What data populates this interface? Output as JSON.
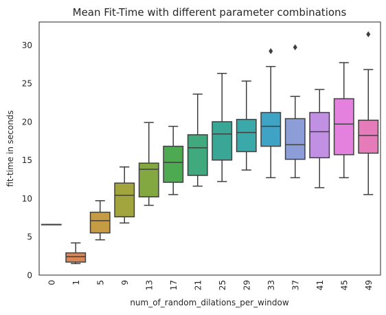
{
  "chart_data": {
    "type": "box",
    "title": "Mean Fit-Time with different parameter combinations",
    "xlabel": "num_of_random_dilations_per_window",
    "ylabel": "fit-time in seconds",
    "ylim": [
      0,
      33
    ],
    "yticks": [
      0,
      5,
      10,
      15,
      20,
      25,
      30
    ],
    "grid": false,
    "categories": [
      "0",
      "1",
      "5",
      "9",
      "13",
      "17",
      "21",
      "25",
      "29",
      "33",
      "37",
      "41",
      "45",
      "49"
    ],
    "colors": [
      "#e1716a",
      "#d98659",
      "#c59b43",
      "#a2a43d",
      "#83a842",
      "#4daa50",
      "#40a97e",
      "#3aa796",
      "#3ba8aa",
      "#3ea3c4",
      "#8c9dd8",
      "#c190e3",
      "#e480de",
      "#e57cb9"
    ],
    "boxes": [
      {
        "whislo": 6.6,
        "q1": 6.6,
        "med": 6.6,
        "q3": 6.6,
        "whishi": 6.6,
        "fliers": []
      },
      {
        "whislo": 1.5,
        "q1": 1.7,
        "med": 2.4,
        "q3": 2.9,
        "whishi": 4.2,
        "fliers": []
      },
      {
        "whislo": 4.6,
        "q1": 5.5,
        "med": 7.1,
        "q3": 8.2,
        "whishi": 9.7,
        "fliers": []
      },
      {
        "whislo": 6.8,
        "q1": 7.6,
        "med": 10.4,
        "q3": 12.0,
        "whishi": 14.1,
        "fliers": []
      },
      {
        "whislo": 9.1,
        "q1": 10.2,
        "med": 13.8,
        "q3": 14.6,
        "whishi": 19.9,
        "fliers": []
      },
      {
        "whislo": 10.5,
        "q1": 12.1,
        "med": 14.7,
        "q3": 16.8,
        "whishi": 19.4,
        "fliers": []
      },
      {
        "whislo": 11.6,
        "q1": 13.0,
        "med": 16.6,
        "q3": 18.3,
        "whishi": 23.6,
        "fliers": []
      },
      {
        "whislo": 12.2,
        "q1": 15.0,
        "med": 18.4,
        "q3": 20.0,
        "whishi": 26.3,
        "fliers": []
      },
      {
        "whislo": 13.7,
        "q1": 16.1,
        "med": 18.6,
        "q3": 20.3,
        "whishi": 25.3,
        "fliers": []
      },
      {
        "whislo": 12.7,
        "q1": 16.8,
        "med": 19.4,
        "q3": 21.2,
        "whishi": 27.2,
        "fliers": [
          29.2
        ]
      },
      {
        "whislo": 12.7,
        "q1": 15.1,
        "med": 17.0,
        "q3": 20.4,
        "whishi": 23.3,
        "fliers": [
          29.7
        ]
      },
      {
        "whislo": 11.4,
        "q1": 15.3,
        "med": 18.7,
        "q3": 21.2,
        "whishi": 24.2,
        "fliers": []
      },
      {
        "whislo": 12.7,
        "q1": 15.7,
        "med": 19.7,
        "q3": 23.0,
        "whishi": 27.7,
        "fliers": []
      },
      {
        "whislo": 10.5,
        "q1": 15.9,
        "med": 18.2,
        "q3": 20.2,
        "whishi": 26.8,
        "fliers": [
          31.4
        ]
      }
    ]
  }
}
